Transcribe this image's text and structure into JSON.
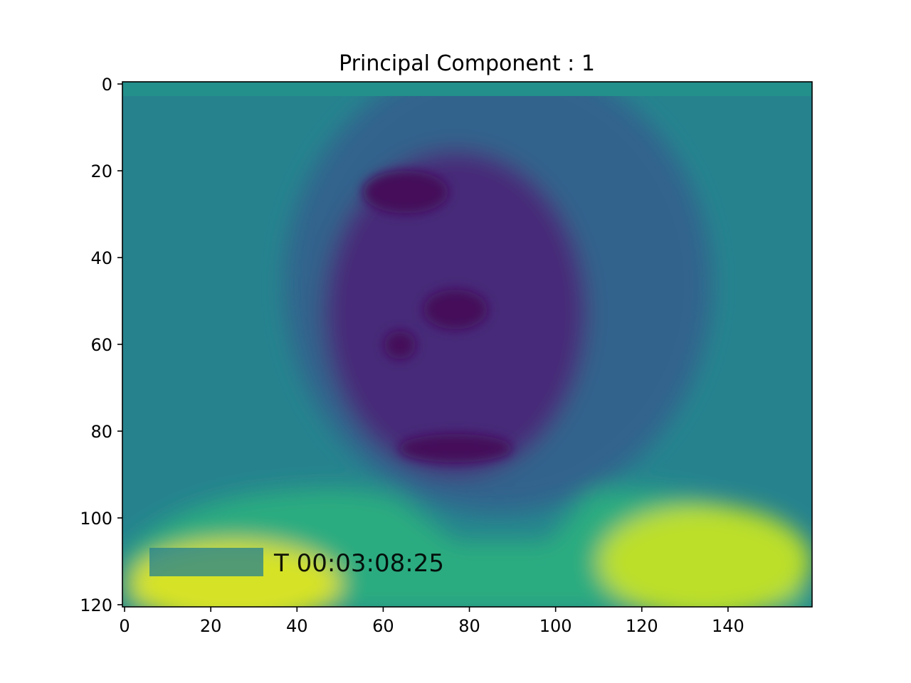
{
  "chart_data": {
    "type": "heatmap",
    "title": "Principal Component : 1",
    "xlabel": "",
    "ylabel": "",
    "image_size": {
      "columns": 160,
      "rows": 121
    },
    "xlim": [
      -0.5,
      159.5
    ],
    "ylim": [
      120.5,
      -0.5
    ],
    "x_ticks": [
      0,
      20,
      40,
      60,
      80,
      100,
      120,
      140
    ],
    "y_ticks": [
      0,
      20,
      40,
      60,
      80,
      100,
      120
    ],
    "colormap": "viridis",
    "colormap_stops": [
      "#440154",
      "#482878",
      "#3e4989",
      "#31688e",
      "#26828e",
      "#1f9e89",
      "#35b779",
      "#6ece58",
      "#b5de2b",
      "#fde725"
    ],
    "grid": false,
    "legend": "none",
    "depicted_content": "eigenface – blurred head-and-shoulders portrait; dark (low) values on face/hair region, bright (high) values on shoulders/shirt, mid values on background",
    "overlay_text": "T 00:03:08:25",
    "value_regions": [
      {
        "label": "background",
        "level": 0.45
      },
      {
        "label": "face",
        "level": 0.12
      },
      {
        "label": "hair",
        "level": 0.22
      },
      {
        "label": "shirt",
        "level": 0.82
      },
      {
        "label": "dark spots (eyes / features)",
        "level": 0.02
      }
    ]
  }
}
